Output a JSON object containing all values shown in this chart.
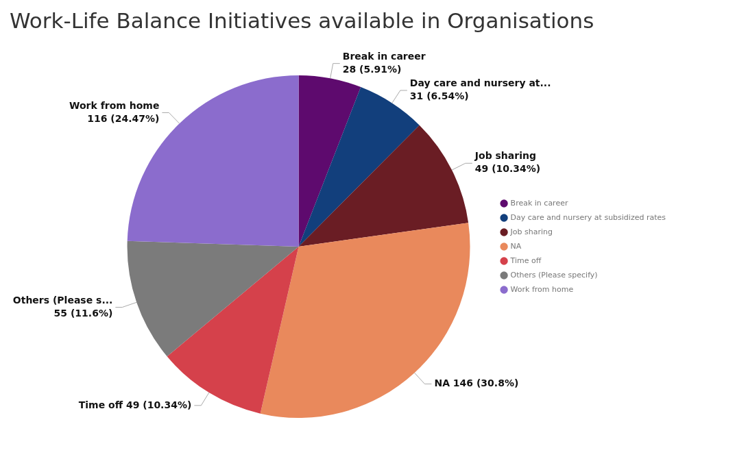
{
  "chart_data": {
    "type": "pie",
    "title": "Work-Life Balance Initiatives available in Organisations",
    "categories": [
      "Break in career",
      "Day care and nursery at subsidized rates",
      "Job sharing",
      "NA",
      "Time off",
      "Others (Please specify)",
      "Work from home"
    ],
    "values": [
      28,
      31,
      49,
      146,
      49,
      55,
      116
    ],
    "colors": [
      "#5e0a6e",
      "#123f7c",
      "#6a1d24",
      "#e9895c",
      "#d5414b",
      "#7b7b7b",
      "#8b6ccd"
    ],
    "value_labels": [
      "Break in career\n28 (5.91%)",
      "Day care and nursery at...\n31 (6.54%)",
      "Job sharing\n49 (10.34%)",
      "NA 146 (30.8%)",
      "Time off 49 (10.34%)",
      "Others (Please s...\n55 (11.6%)",
      "Work from home\n116 (24.47%)"
    ],
    "legend": "right"
  }
}
